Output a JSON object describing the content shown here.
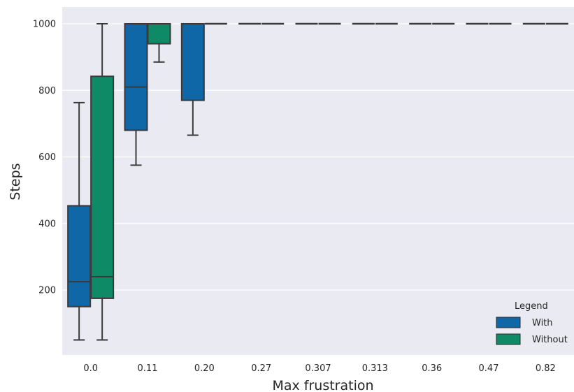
{
  "chart_data": {
    "type": "box",
    "title": "",
    "xlabel": "Max frustration",
    "ylabel": "Steps",
    "ylim": [
      0,
      1050
    ],
    "yticks": [
      200,
      400,
      600,
      800,
      1000
    ],
    "grid": true,
    "legend_position": "lower-right",
    "legend_title": "Legend",
    "categories": [
      "0.0",
      "0.11",
      "0.20",
      "0.27",
      "0.307",
      "0.313",
      "0.36",
      "0.47",
      "0.82"
    ],
    "series": [
      {
        "name": "With",
        "color": "#0f67a7",
        "boxes": [
          {
            "whisker_low": 50,
            "q1": 150,
            "median": 225,
            "q3": 453,
            "whisker_high": 763
          },
          {
            "whisker_low": 575,
            "q1": 680,
            "median": 810,
            "q3": 1000,
            "whisker_high": 1000
          },
          {
            "whisker_low": 665,
            "q1": 770,
            "median": 1000,
            "q3": 1000,
            "whisker_high": 1000
          },
          {
            "whisker_low": 1000,
            "q1": 1000,
            "median": 1000,
            "q3": 1000,
            "whisker_high": 1000
          },
          {
            "whisker_low": 1000,
            "q1": 1000,
            "median": 1000,
            "q3": 1000,
            "whisker_high": 1000
          },
          {
            "whisker_low": 1000,
            "q1": 1000,
            "median": 1000,
            "q3": 1000,
            "whisker_high": 1000
          },
          {
            "whisker_low": 1000,
            "q1": 1000,
            "median": 1000,
            "q3": 1000,
            "whisker_high": 1000
          },
          {
            "whisker_low": 1000,
            "q1": 1000,
            "median": 1000,
            "q3": 1000,
            "whisker_high": 1000
          },
          {
            "whisker_low": 1000,
            "q1": 1000,
            "median": 1000,
            "q3": 1000,
            "whisker_high": 1000
          }
        ]
      },
      {
        "name": "Without",
        "color": "#0e8a66",
        "boxes": [
          {
            "whisker_low": 50,
            "q1": 175,
            "median": 240,
            "q3": 842,
            "whisker_high": 1000
          },
          {
            "whisker_low": 885,
            "q1": 940,
            "median": 1000,
            "q3": 1000,
            "whisker_high": 1000
          },
          {
            "whisker_low": 1000,
            "q1": 1000,
            "median": 1000,
            "q3": 1000,
            "whisker_high": 1000
          },
          {
            "whisker_low": 1000,
            "q1": 1000,
            "median": 1000,
            "q3": 1000,
            "whisker_high": 1000
          },
          {
            "whisker_low": 1000,
            "q1": 1000,
            "median": 1000,
            "q3": 1000,
            "whisker_high": 1000
          },
          {
            "whisker_low": 1000,
            "q1": 1000,
            "median": 1000,
            "q3": 1000,
            "whisker_high": 1000
          },
          {
            "whisker_low": 1000,
            "q1": 1000,
            "median": 1000,
            "q3": 1000,
            "whisker_high": 1000
          },
          {
            "whisker_low": 1000,
            "q1": 1000,
            "median": 1000,
            "q3": 1000,
            "whisker_high": 1000
          },
          {
            "whisker_low": 1000,
            "q1": 1000,
            "median": 1000,
            "q3": 1000,
            "whisker_high": 1000
          }
        ]
      }
    ]
  },
  "colors": {
    "background": "#eaeaf2",
    "grid": "#ffffff",
    "line": "#3a3a3a"
  }
}
